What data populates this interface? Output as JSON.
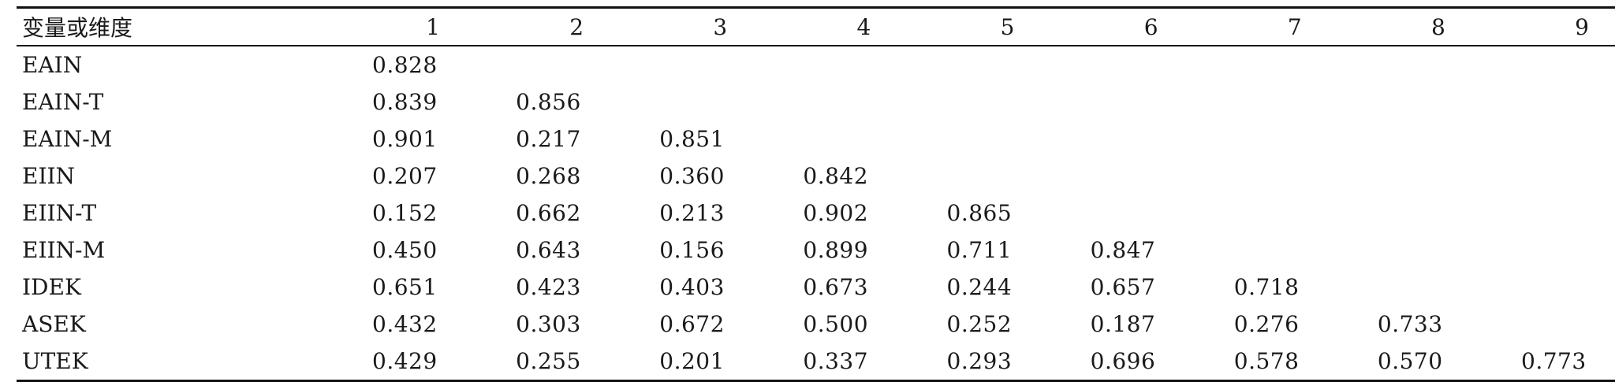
{
  "table": {
    "headers": [
      "变量或维度",
      "1",
      "2",
      "3",
      "4",
      "5",
      "6",
      "7",
      "8",
      "9"
    ],
    "rows": [
      {
        "label": "EAIN",
        "values": [
          "0.828",
          "",
          "",
          "",
          "",
          "",
          "",
          "",
          ""
        ]
      },
      {
        "label": "EAIN-T",
        "values": [
          "0.839",
          "0.856",
          "",
          "",
          "",
          "",
          "",
          "",
          ""
        ]
      },
      {
        "label": "EAIN-M",
        "values": [
          "0.901",
          "0.217",
          "0.851",
          "",
          "",
          "",
          "",
          "",
          ""
        ]
      },
      {
        "label": "EIIN",
        "values": [
          "0.207",
          "0.268",
          "0.360",
          "0.842",
          "",
          "",
          "",
          "",
          ""
        ]
      },
      {
        "label": "EIIN-T",
        "values": [
          "0.152",
          "0.662",
          "0.213",
          "0.902",
          "0.865",
          "",
          "",
          "",
          ""
        ]
      },
      {
        "label": "EIIN-M",
        "values": [
          "0.450",
          "0.643",
          "0.156",
          "0.899",
          "0.711",
          "0.847",
          "",
          "",
          ""
        ]
      },
      {
        "label": "IDEK",
        "values": [
          "0.651",
          "0.423",
          "0.403",
          "0.673",
          "0.244",
          "0.657",
          "0.718",
          "",
          ""
        ]
      },
      {
        "label": "ASEK",
        "values": [
          "0.432",
          "0.303",
          "0.672",
          "0.500",
          "0.252",
          "0.187",
          "0.276",
          "0.733",
          ""
        ]
      },
      {
        "label": "UTEK",
        "values": [
          "0.429",
          "0.255",
          "0.201",
          "0.337",
          "0.293",
          "0.696",
          "0.578",
          "0.570",
          "0.773"
        ]
      }
    ]
  }
}
